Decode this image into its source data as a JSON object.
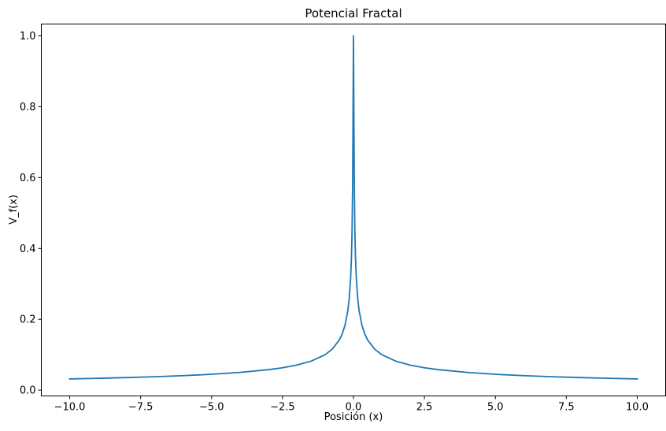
{
  "chart_data": {
    "type": "line",
    "title": "Potencial Fractal",
    "xlabel": "Posición (x)",
    "ylabel": "V_f(x)",
    "xlim": [
      -11.0,
      11.0
    ],
    "ylim": [
      -0.0164,
      1.0334
    ],
    "xticks": [
      -10.0,
      -7.5,
      -5.0,
      -2.5,
      0.0,
      2.5,
      5.0,
      7.5,
      10.0
    ],
    "xtick_labels": [
      "−10.0",
      "−7.5",
      "−5.0",
      "−2.5",
      "0.0",
      "2.5",
      "5.0",
      "7.5",
      "10.0"
    ],
    "yticks": [
      0.0,
      0.2,
      0.4,
      0.6,
      0.8,
      1.0
    ],
    "ytick_labels": [
      "0.0",
      "0.2",
      "0.4",
      "0.6",
      "0.8",
      "1.0"
    ],
    "grid": false,
    "line_color": "#1f77b4",
    "series": [
      {
        "x": [
          -10.0,
          -9.0,
          -8.0,
          -7.0,
          -6.0,
          -5.0,
          -4.0,
          -3.0,
          -2.5,
          -2.0,
          -1.5,
          -1.0,
          -0.75,
          -0.5,
          -0.4,
          -0.3,
          -0.2,
          -0.15,
          -0.1,
          -0.07,
          -0.05,
          -0.03,
          -0.02,
          -0.01,
          0.0,
          0.01,
          0.02,
          0.03,
          0.05,
          0.07,
          0.1,
          0.15,
          0.2,
          0.3,
          0.4,
          0.5,
          0.75,
          1.0,
          1.5,
          2.0,
          2.5,
          3.0,
          4.0,
          5.0,
          6.0,
          7.0,
          8.0,
          9.0,
          10.0
        ],
        "y": [
          0.0316,
          0.0333,
          0.0354,
          0.0378,
          0.0408,
          0.0447,
          0.05,
          0.0577,
          0.0632,
          0.0707,
          0.0816,
          0.1,
          0.1155,
          0.1414,
          0.1581,
          0.1826,
          0.2236,
          0.2582,
          0.3162,
          0.378,
          0.4472,
          0.5774,
          0.7071,
          0.85,
          1.0,
          0.85,
          0.7071,
          0.5774,
          0.4472,
          0.378,
          0.3162,
          0.2582,
          0.2236,
          0.1826,
          0.1581,
          0.1414,
          0.1155,
          0.1,
          0.0816,
          0.0707,
          0.0632,
          0.0577,
          0.05,
          0.0447,
          0.0408,
          0.0378,
          0.0354,
          0.0333,
          0.0316
        ]
      }
    ]
  }
}
